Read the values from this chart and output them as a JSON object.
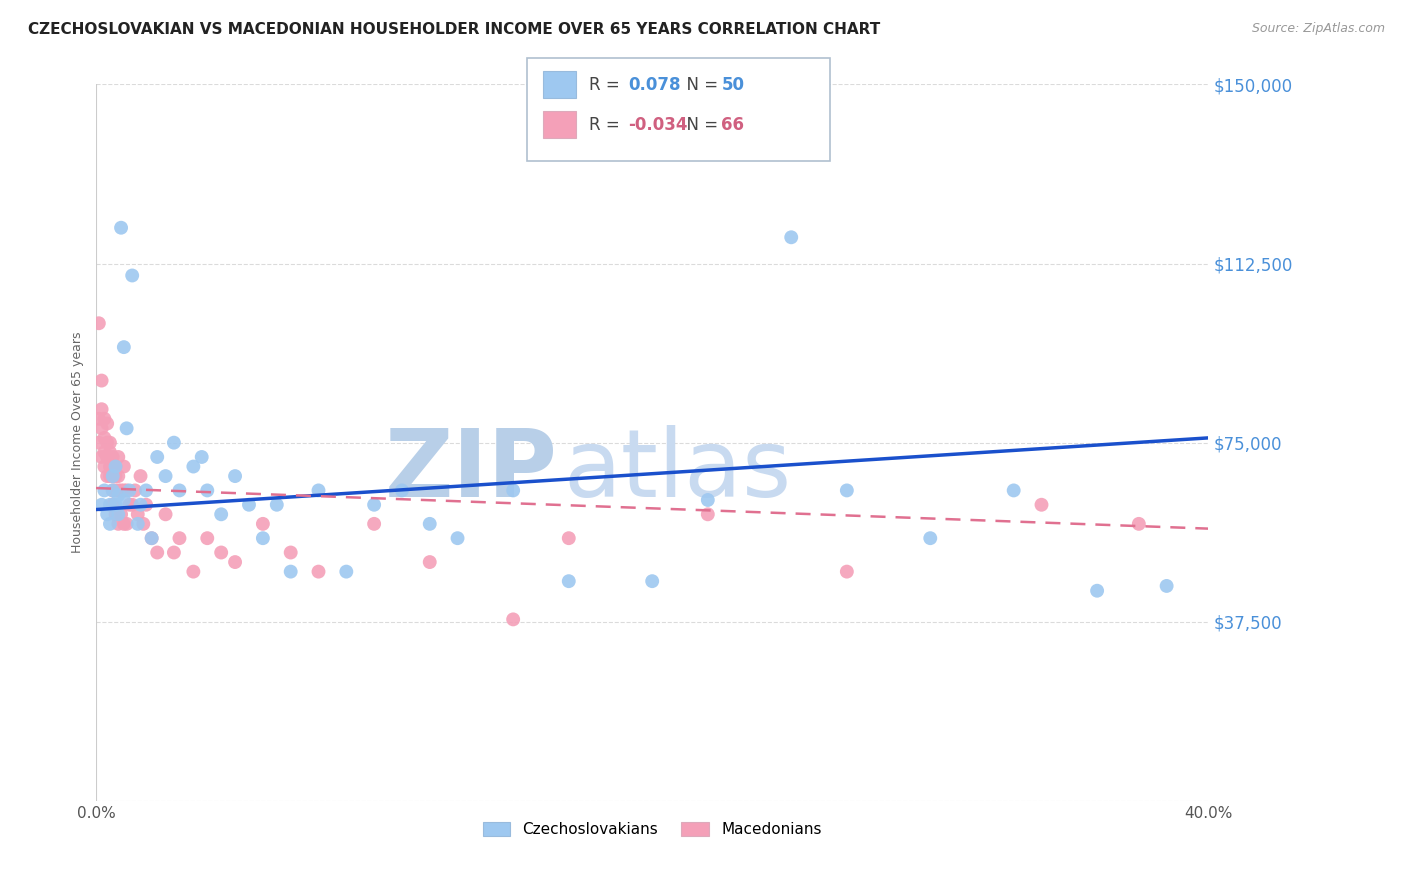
{
  "title": "CZECHOSLOVAKIAN VS MACEDONIAN HOUSEHOLDER INCOME OVER 65 YEARS CORRELATION CHART",
  "source": "Source: ZipAtlas.com",
  "ylabel": "Householder Income Over 65 years",
  "background_color": "#ffffff",
  "grid_color": "#cccccc",
  "watermark_zip_color": "#b8cfe8",
  "watermark_atlas_color": "#c8daf0",
  "ytick_color": "#4a90d9",
  "ylim": [
    0,
    150000
  ],
  "xlim": [
    0.0,
    0.4
  ],
  "yticks": [
    0,
    37500,
    75000,
    112500,
    150000
  ],
  "ytick_labels": [
    "",
    "$37,500",
    "$75,000",
    "$112,500",
    "$150,000"
  ],
  "xticks": [
    0.0,
    0.1,
    0.2,
    0.3,
    0.4
  ],
  "xtick_labels": [
    "0.0%",
    "",
    "",
    "",
    "40.0%"
  ],
  "legend_R1_val": "0.078",
  "legend_N1_val": "50",
  "legend_R2_val": "-0.034",
  "legend_N2_val": "66",
  "color_czech": "#9ec8f0",
  "color_mace": "#f4a0b8",
  "color_trend_czech": "#1a50cc",
  "color_trend_mace": "#e07090",
  "legend_label_czech": "Czechoslovakians",
  "legend_label_mace": "Macedonians",
  "czech_x": [
    0.002,
    0.003,
    0.004,
    0.005,
    0.005,
    0.006,
    0.006,
    0.007,
    0.007,
    0.008,
    0.008,
    0.009,
    0.01,
    0.01,
    0.011,
    0.012,
    0.013,
    0.015,
    0.016,
    0.018,
    0.02,
    0.022,
    0.025,
    0.028,
    0.03,
    0.035,
    0.038,
    0.04,
    0.045,
    0.05,
    0.055,
    0.06,
    0.065,
    0.07,
    0.08,
    0.09,
    0.1,
    0.11,
    0.12,
    0.13,
    0.15,
    0.17,
    0.2,
    0.22,
    0.25,
    0.27,
    0.3,
    0.33,
    0.36,
    0.385
  ],
  "czech_y": [
    62000,
    65000,
    60000,
    58000,
    62000,
    68000,
    65000,
    70000,
    62000,
    60000,
    64000,
    120000,
    63000,
    95000,
    78000,
    65000,
    110000,
    58000,
    62000,
    65000,
    55000,
    72000,
    68000,
    75000,
    65000,
    70000,
    72000,
    65000,
    60000,
    68000,
    62000,
    55000,
    62000,
    48000,
    65000,
    48000,
    62000,
    65000,
    58000,
    55000,
    65000,
    46000,
    46000,
    63000,
    118000,
    65000,
    55000,
    65000,
    44000,
    45000
  ],
  "mace_x": [
    0.001,
    0.001,
    0.001,
    0.002,
    0.002,
    0.002,
    0.002,
    0.003,
    0.003,
    0.003,
    0.003,
    0.004,
    0.004,
    0.004,
    0.004,
    0.005,
    0.005,
    0.005,
    0.005,
    0.006,
    0.006,
    0.006,
    0.006,
    0.006,
    0.007,
    0.007,
    0.007,
    0.007,
    0.008,
    0.008,
    0.008,
    0.008,
    0.009,
    0.009,
    0.01,
    0.01,
    0.01,
    0.011,
    0.011,
    0.012,
    0.013,
    0.014,
    0.015,
    0.016,
    0.017,
    0.018,
    0.02,
    0.022,
    0.025,
    0.028,
    0.03,
    0.035,
    0.04,
    0.045,
    0.05,
    0.06,
    0.07,
    0.08,
    0.1,
    0.12,
    0.15,
    0.17,
    0.22,
    0.27,
    0.34,
    0.375
  ],
  "mace_y": [
    100000,
    80000,
    75000,
    88000,
    82000,
    78000,
    72000,
    80000,
    76000,
    73000,
    70000,
    79000,
    75000,
    72000,
    68000,
    75000,
    73000,
    70000,
    68000,
    72000,
    70000,
    68000,
    65000,
    62000,
    70000,
    68000,
    65000,
    60000,
    72000,
    68000,
    65000,
    58000,
    65000,
    60000,
    70000,
    65000,
    58000,
    65000,
    58000,
    62000,
    62000,
    65000,
    60000,
    68000,
    58000,
    62000,
    55000,
    52000,
    60000,
    52000,
    55000,
    48000,
    55000,
    52000,
    50000,
    58000,
    52000,
    48000,
    58000,
    50000,
    38000,
    55000,
    60000,
    48000,
    62000,
    58000
  ]
}
